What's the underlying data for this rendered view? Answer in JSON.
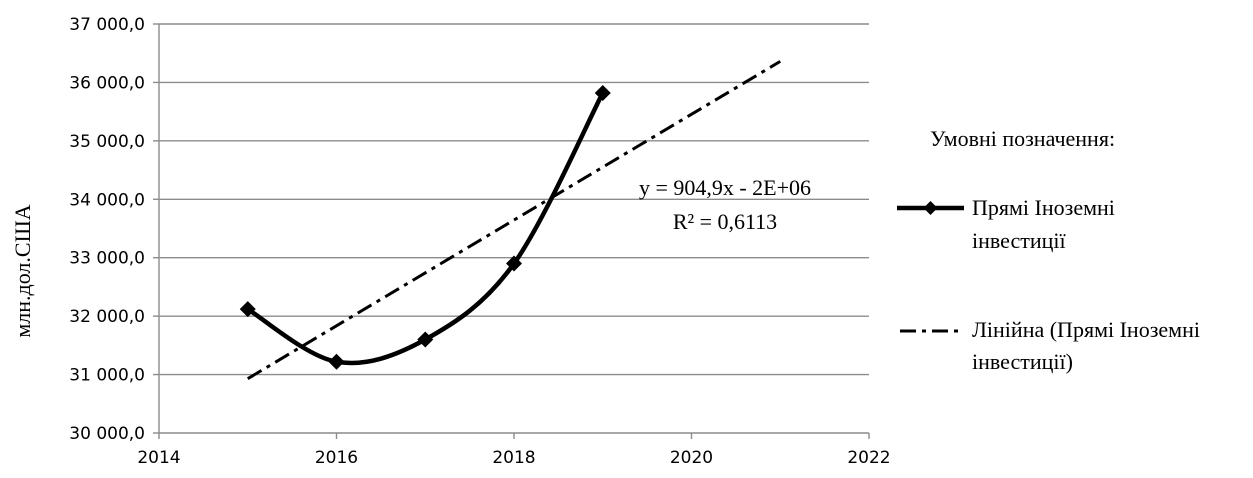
{
  "chart_data": {
    "type": "line",
    "title": "",
    "xlabel": "",
    "ylabel": "млн.дол.США",
    "xlim": [
      2014,
      2022
    ],
    "ylim": [
      30000,
      37000
    ],
    "x_ticks": [
      2014,
      2016,
      2018,
      2020,
      2022
    ],
    "x_tick_labels": [
      "2014",
      "2016",
      "2018",
      "2020",
      "2022"
    ],
    "y_ticks": [
      30000,
      31000,
      32000,
      33000,
      34000,
      35000,
      36000,
      37000
    ],
    "y_tick_labels": [
      "30 000,0",
      "31 000,0",
      "32 000,0",
      "33 000,0",
      "34 000,0",
      "35 000,0",
      "36 000,0",
      "37 000,0"
    ],
    "grid": "horizontal",
    "series": [
      {
        "name": "Прямі Іноземні інвестиції",
        "style": "solid-smoothed-with-diamond-markers",
        "color": "#000000",
        "x": [
          2015,
          2016,
          2017,
          2018,
          2019
        ],
        "y": [
          32120,
          31220,
          31600,
          32900,
          35820
        ]
      }
    ],
    "trendline": {
      "name": "Лінійна (Прямі Іноземні інвестиції)",
      "style": "dash-dot",
      "x": [
        2015,
        2021
      ],
      "y": [
        30930,
        36360
      ],
      "equation": "y = 904,9x - 2E+06",
      "r_squared": "R² = 0,6113"
    },
    "legend": {
      "position": "right",
      "title": "Умовні позначення:",
      "series_label_lines": [
        "Прямі Іноземні",
        "інвестиції"
      ],
      "trend_label_lines": [
        "Лінійна (Прямі Іноземні",
        "інвестиції)"
      ]
    }
  }
}
